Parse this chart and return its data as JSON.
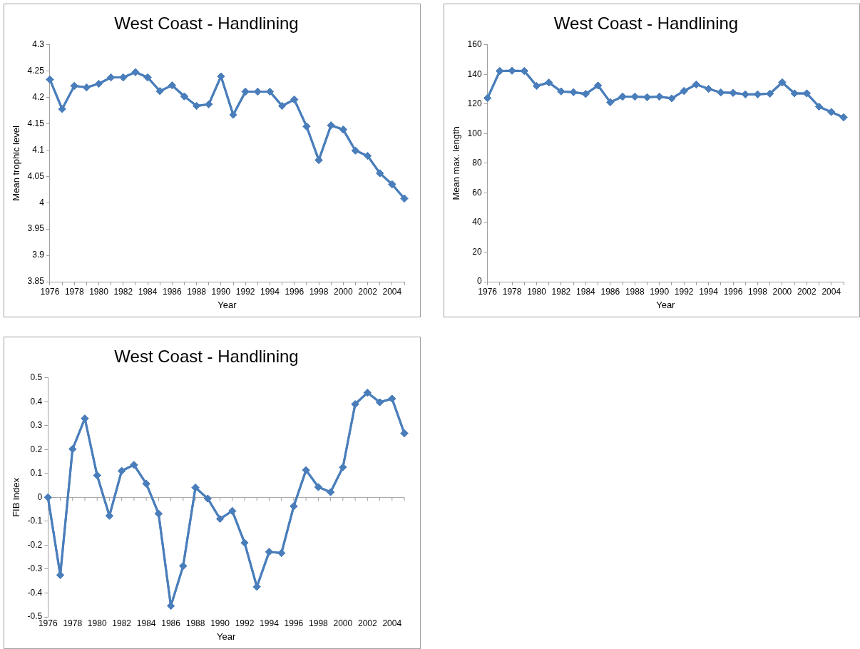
{
  "chart_data": [
    {
      "type": "line",
      "title": "West Coast - Handlining",
      "xlabel": "Year",
      "ylabel": "Mean trophic level",
      "categories": [
        "1976",
        null,
        "1978",
        null,
        "1980",
        null,
        "1982",
        null,
        "1984",
        null,
        "1986",
        null,
        "1988",
        null,
        "1990",
        null,
        "1992",
        null,
        "1994",
        null,
        "1996",
        null,
        "1998",
        null,
        "2000",
        null,
        "2002",
        null,
        "2004",
        null
      ],
      "series": [
        {
          "color": "#4a7ebb",
          "values": [
            4.234,
            4.178,
            4.222,
            4.219,
            4.226,
            4.238,
            4.238,
            4.248,
            4.238,
            4.212,
            4.223,
            4.202,
            4.184,
            4.187,
            4.24,
            4.167,
            4.211,
            4.211,
            4.211,
            4.184,
            4.196,
            4.145,
            4.081,
            4.147,
            4.139,
            4.099,
            4.089,
            4.056,
            4.035,
            4.008
          ]
        }
      ],
      "ylim": [
        3.85,
        4.3
      ],
      "yticks": [
        3.85,
        3.9,
        3.95,
        4,
        4.05,
        4.1,
        4.15,
        4.2,
        4.25,
        4.3
      ],
      "grid": false,
      "legend": false,
      "marker": "diamond",
      "line_style": "solid"
    },
    {
      "type": "line",
      "title": "West Coast - Handlining",
      "xlabel": "Year",
      "ylabel": "Mean max. length",
      "categories": [
        "1976",
        null,
        "1978",
        null,
        "1980",
        null,
        "1982",
        null,
        "1984",
        null,
        "1986",
        null,
        "1988",
        null,
        "1990",
        null,
        "1992",
        null,
        "1994",
        null,
        "1996",
        null,
        "1998",
        null,
        "2000",
        null,
        "2002",
        null,
        "2004",
        null
      ],
      "series": [
        {
          "color": "#4a7ebb",
          "values": [
            124,
            142.3,
            142.5,
            142.3,
            132.2,
            134.5,
            128.5,
            128,
            126.8,
            132.5,
            121.2,
            125,
            125,
            124.6,
            125,
            123.8,
            128.8,
            133.2,
            130.2,
            127.8,
            127.5,
            126.5,
            126.5,
            127,
            134.6,
            127.2,
            127.2,
            118.2,
            114.6,
            111
          ]
        }
      ],
      "ylim": [
        0,
        160
      ],
      "yticks": [
        0,
        20,
        40,
        60,
        80,
        100,
        120,
        140,
        160
      ],
      "grid": false,
      "legend": false,
      "marker": "diamond",
      "line_style": "solid"
    },
    {
      "type": "line",
      "title": "West Coast - Handlining",
      "xlabel": "Year",
      "ylabel": "FIB index",
      "categories": [
        "1976",
        null,
        "1978",
        null,
        "1980",
        null,
        "1982",
        null,
        "1984",
        null,
        "1986",
        null,
        "1988",
        null,
        "1990",
        null,
        "1992",
        null,
        "1994",
        null,
        "1996",
        null,
        "1998",
        null,
        "2000",
        null,
        "2002",
        null,
        "2004",
        null
      ],
      "series": [
        {
          "color": "#4a7ebb",
          "values": [
            0,
            -0.325,
            0.202,
            0.33,
            0.092,
            -0.077,
            0.111,
            0.136,
            0.057,
            -0.068,
            -0.454,
            -0.287,
            0.041,
            -0.005,
            -0.09,
            -0.057,
            -0.19,
            -0.374,
            -0.228,
            -0.233,
            -0.037,
            0.114,
            0.043,
            0.022,
            0.126,
            0.39,
            0.438,
            0.398,
            0.413,
            0.268
          ]
        }
      ],
      "ylim": [
        -0.5,
        0.5
      ],
      "yticks": [
        -0.5,
        -0.4,
        -0.3,
        -0.2,
        -0.1,
        0,
        0.1,
        0.2,
        0.3,
        0.4,
        0.5
      ],
      "ref_lines": [
        {
          "axis": "y",
          "value": 0,
          "color": "#a0a0a0"
        }
      ],
      "grid": false,
      "legend": false,
      "marker": "diamond",
      "line_style": "solid"
    }
  ]
}
